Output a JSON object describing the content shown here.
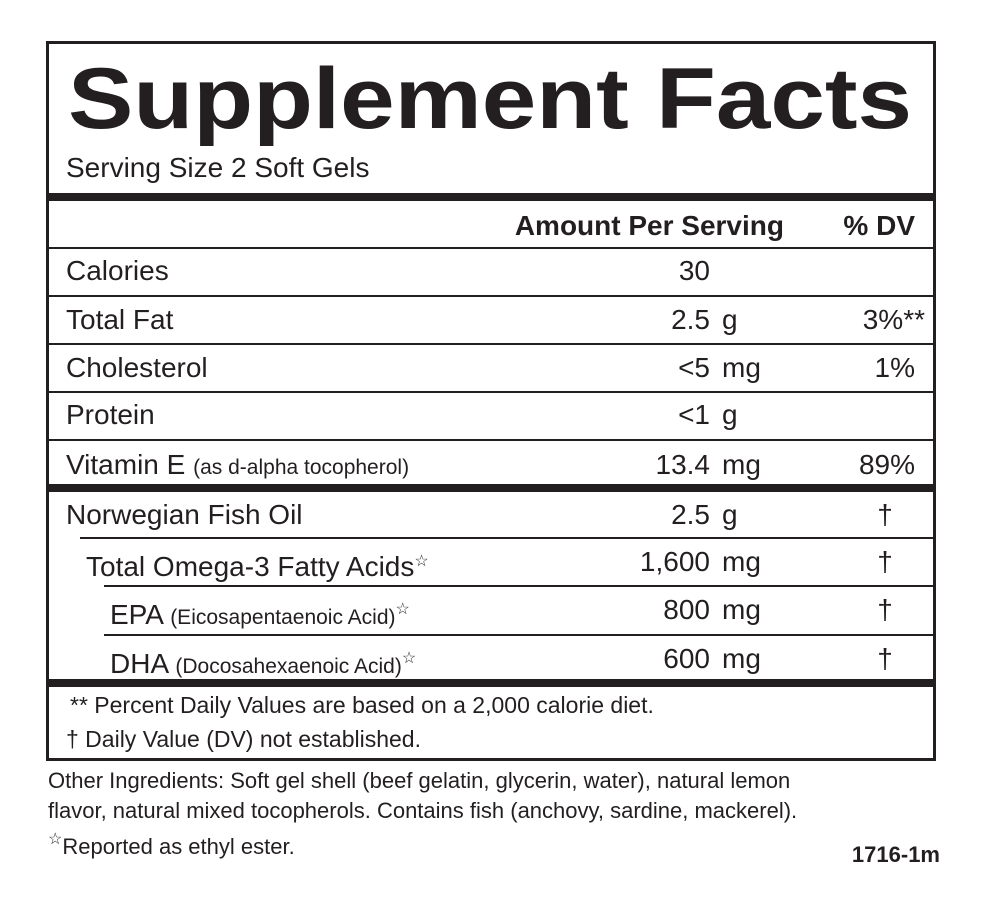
{
  "title": "Supplement Facts",
  "serving_size": "Serving Size 2 Soft Gels",
  "header": {
    "amount": "Amount Per Serving",
    "dv": "% DV"
  },
  "rows": [
    {
      "name": "Calories",
      "amount": "30"
    },
    {
      "name": "Total Fat",
      "amount": "2.5",
      "unit": "g",
      "dv": "3%**"
    },
    {
      "name": "Cholesterol",
      "amount": "<5",
      "unit": "mg",
      "dv": "1%"
    },
    {
      "name": "Protein",
      "amount": "<1",
      "unit": "g"
    },
    {
      "name": "Vitamin E",
      "note": "(as d-alpha tocopherol)",
      "amount": "13.4",
      "unit": "mg",
      "dv": "89%"
    },
    {
      "name": "Norwegian Fish Oil",
      "amount": "2.5",
      "unit": "g",
      "dv": "†"
    },
    {
      "name": "Total Omega-3 Fatty Acids",
      "star": "☆",
      "amount": "1,600",
      "unit": "mg",
      "dv": "†"
    },
    {
      "name": "EPA",
      "note": "(Eicosapentaenoic Acid)",
      "star": "☆",
      "amount": "800",
      "unit": "mg",
      "dv": "†"
    },
    {
      "name": "DHA",
      "note": "(Docosahexaenoic Acid)",
      "star": "☆",
      "amount": "600",
      "unit": "mg",
      "dv": "†"
    }
  ],
  "footnotes": [
    "** Percent Daily Values are based on a 2,000 calorie diet.",
    "† Daily Value (DV) not established."
  ],
  "other_ingredients": [
    "Other Ingredients: Soft gel shell (beef gelatin, glycerin, water), natural lemon",
    "flavor, natural mixed tocopherols. Contains fish (anchovy, sardine, mackerel)."
  ],
  "star_note": {
    "symbol": "☆",
    "text": "Reported as ethyl ester."
  },
  "code": "1716-1m"
}
